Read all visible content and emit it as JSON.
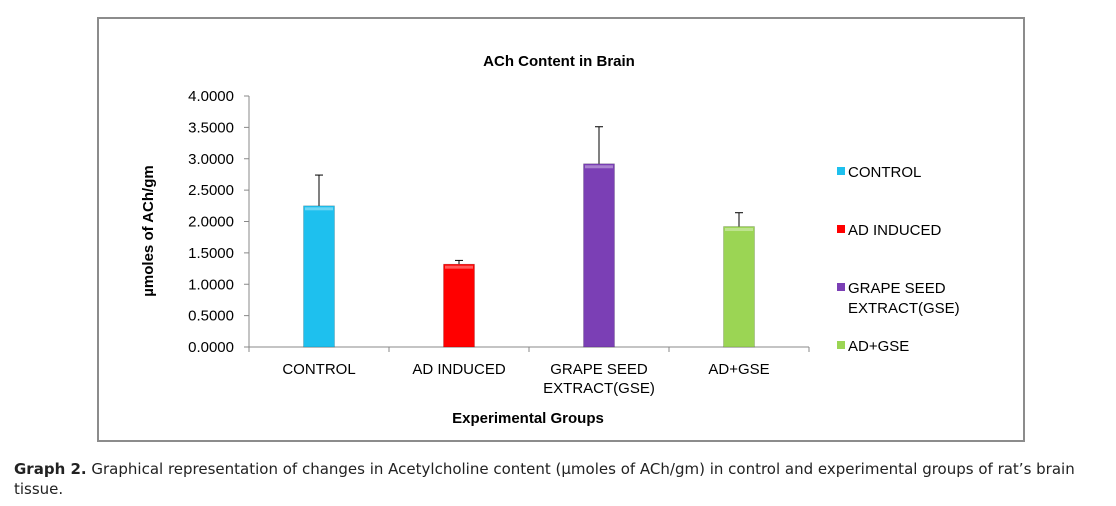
{
  "chart_data": {
    "type": "bar",
    "title": "ACh Content in Brain",
    "xlabel": "Experimental Groups",
    "ylabel": "µmoles of ACh/gm",
    "ylim": [
      0,
      4
    ],
    "yticks": [
      "0.0000",
      "0.5000",
      "1.0000",
      "1.5000",
      "2.0000",
      "2.5000",
      "3.0000",
      "3.5000",
      "4.0000"
    ],
    "categories": [
      [
        "CONTROL"
      ],
      [
        "AD INDUCED"
      ],
      [
        "GRAPE SEED",
        "EXTRACT(GSE)"
      ],
      [
        "AD+GSE"
      ]
    ],
    "values": [
      2.25,
      1.32,
      2.92,
      1.92
    ],
    "errors": [
      0.49,
      0.06,
      0.59,
      0.22
    ],
    "colors": [
      "#1ec0ee",
      "#ff0000",
      "#7b3fb5",
      "#9bd554"
    ],
    "legend": {
      "position": "right",
      "entries": [
        [
          "CONTROL"
        ],
        [
          "AD INDUCED"
        ],
        [
          "GRAPE SEED",
          "EXTRACT(GSE)"
        ],
        [
          "AD+GSE"
        ]
      ]
    },
    "grid": false
  },
  "caption": {
    "label": "Graph 2.",
    "text": "Graphical representation of changes in Acetylcholine content (µmoles of ACh/gm) in control and experimental groups of rat’s brain tissue."
  }
}
